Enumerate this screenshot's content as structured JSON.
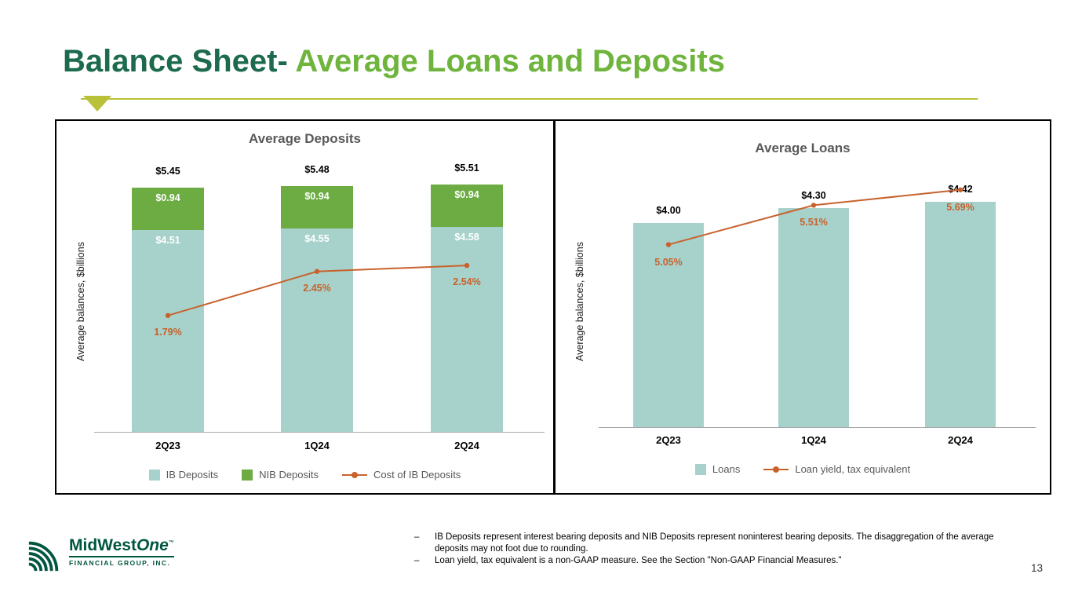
{
  "slide": {
    "title": {
      "prefix": "Balance Sheet- ",
      "highlight": "Average Loans and Deposits"
    },
    "page_number": "13"
  },
  "logo": {
    "brand_part1": "MidWest",
    "brand_part2": "One",
    "trademark": "™",
    "subtitle": "FINANCIAL GROUP, INC."
  },
  "footnotes": {
    "bullet": "–",
    "items": [
      "IB Deposits represent interest bearing deposits and NIB Deposits represent noninterest bearing deposits. The disaggregation of the average deposits may not foot due to rounding.",
      "Loan yield, tax equivalent is a non-GAAP measure. See the Section \"Non-GAAP Financial Measures.\""
    ]
  },
  "colors": {
    "title_dark_green": "#1d6b4e",
    "title_light_green": "#6eb43d",
    "divider_olive": "#b8c138",
    "bar_teal": "#a6d2cb",
    "bar_green": "#6cac43",
    "line_orange": "#c8622d",
    "chart_title_gray": "#595959",
    "logo_green": "#00563f"
  },
  "chart_data": [
    {
      "type": "bar",
      "subtype": "stacked-bars-with-line",
      "title": "Average Deposits",
      "ylabel": "Average balances, $billions",
      "categories": [
        "2Q23",
        "1Q24",
        "2Q24"
      ],
      "series": [
        {
          "name": "IB Deposits",
          "values": [
            4.51,
            4.55,
            4.58
          ],
          "labels": [
            "$4.51",
            "$4.55",
            "$4.58"
          ],
          "color": "#a6d2cb"
        },
        {
          "name": "NIB Deposits",
          "values": [
            0.94,
            0.94,
            0.94
          ],
          "labels": [
            "$0.94",
            "$0.94",
            "$0.94"
          ],
          "color": "#6cac43"
        }
      ],
      "totals": [
        "$5.45",
        "$5.48",
        "$5.51"
      ],
      "line_series": {
        "name": "Cost of IB Deposits",
        "values": [
          1.79,
          2.45,
          2.54
        ],
        "labels": [
          "1.79%",
          "2.45%",
          "2.54%"
        ],
        "color": "#c8622d"
      },
      "legend": [
        {
          "label": "IB Deposits",
          "type": "swatch",
          "color": "#a6d2cb"
        },
        {
          "label": "NIB Deposits",
          "type": "swatch",
          "color": "#6cac43"
        },
        {
          "label": "Cost of IB Deposits",
          "type": "line",
          "color": "#c8622d"
        }
      ],
      "ylim": [
        0,
        5.8
      ],
      "grid": false,
      "legend_position": "bottom"
    },
    {
      "type": "bar",
      "subtype": "bars-with-line",
      "title": "Average Loans",
      "ylabel": "Average balances, $billions",
      "categories": [
        "2Q23",
        "1Q24",
        "2Q24"
      ],
      "series": [
        {
          "name": "Loans",
          "values": [
            4.0,
            4.3,
            4.42
          ],
          "color": "#a6d2cb"
        }
      ],
      "totals": [
        "$4.00",
        "$4.30",
        "$4.42"
      ],
      "line_series": {
        "name": "Loan yield, tax equivalent",
        "values": [
          5.05,
          5.51,
          5.69
        ],
        "labels": [
          "5.05%",
          "5.51%",
          "5.69%"
        ],
        "color": "#c8622d"
      },
      "legend": [
        {
          "label": "Loans",
          "type": "swatch",
          "color": "#a6d2cb"
        },
        {
          "label": "Loan yield, tax equivalent",
          "type": "line",
          "color": "#c8622d"
        }
      ],
      "ylim": [
        0,
        6.0
      ],
      "grid": false,
      "legend_position": "bottom"
    }
  ]
}
